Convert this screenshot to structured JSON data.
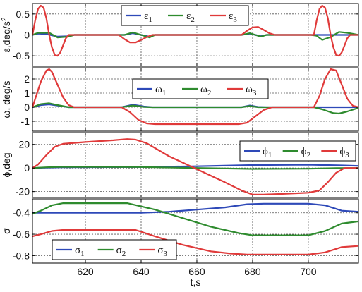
{
  "chart_data": [
    {
      "type": "line",
      "ylabel": "ε,deg/s",
      "ylabel_sup": "2",
      "xlim": [
        601,
        718
      ],
      "ylim": [
        -0.75,
        0.75
      ],
      "yticks": [
        -0.5,
        0,
        0.5
      ],
      "ytick_labels": [
        "-0.5",
        "0",
        "0.5"
      ],
      "grid": true,
      "legend": {
        "position": "top-center",
        "entries": [
          {
            "base": "ε",
            "sub": "1"
          },
          {
            "base": "ε",
            "sub": "2"
          },
          {
            "base": "ε",
            "sub": "3"
          }
        ]
      },
      "series": [
        {
          "color": "#2e49b8",
          "points": [
            [
              601,
              0
            ],
            [
              603,
              0.03
            ],
            [
              606,
              0.02
            ],
            [
              610,
              -0.04
            ],
            [
              614,
              -0.03
            ],
            [
              616,
              0
            ],
            [
              634,
              0
            ],
            [
              637,
              0.04
            ],
            [
              640,
              0
            ],
            [
              643,
              -0.04
            ],
            [
              645,
              0
            ],
            [
              676,
              0
            ],
            [
              679,
              0.03
            ],
            [
              681,
              0
            ],
            [
              683,
              -0.03
            ],
            [
              685,
              0
            ],
            [
              718,
              0
            ]
          ]
        },
        {
          "color": "#2e8b2e",
          "points": [
            [
              601,
              0
            ],
            [
              603,
              0.05
            ],
            [
              607,
              0.05
            ],
            [
              610,
              -0.06
            ],
            [
              614,
              -0.04
            ],
            [
              616,
              0
            ],
            [
              634,
              0
            ],
            [
              637,
              0.06
            ],
            [
              640,
              0
            ],
            [
              643,
              -0.06
            ],
            [
              645,
              0
            ],
            [
              676,
              0
            ],
            [
              679,
              0.04
            ],
            [
              681,
              0
            ],
            [
              683,
              -0.04
            ],
            [
              685,
              0
            ],
            [
              701,
              0
            ],
            [
              703,
              -0.02
            ],
            [
              705,
              -0.12
            ],
            [
              708,
              -0.05
            ],
            [
              711,
              0.07
            ],
            [
              714,
              0.05
            ],
            [
              718,
              0
            ]
          ]
        },
        {
          "color": "#e03a3a",
          "points": [
            [
              601,
              0
            ],
            [
              602,
              0.35
            ],
            [
              603,
              0.62
            ],
            [
              604,
              0.7
            ],
            [
              605,
              0.65
            ],
            [
              606,
              0.4
            ],
            [
              607,
              0
            ],
            [
              608,
              -0.3
            ],
            [
              609,
              -0.48
            ],
            [
              610,
              -0.5
            ],
            [
              611,
              -0.42
            ],
            [
              612,
              -0.25
            ],
            [
              613,
              -0.08
            ],
            [
              614,
              0
            ],
            [
              632,
              0
            ],
            [
              634,
              -0.1
            ],
            [
              636,
              -0.18
            ],
            [
              638,
              -0.18
            ],
            [
              640,
              -0.12
            ],
            [
              642,
              -0.05
            ],
            [
              644,
              0
            ],
            [
              676,
              0
            ],
            [
              678,
              0.1
            ],
            [
              680,
              0.18
            ],
            [
              682,
              0.19
            ],
            [
              684,
              0.12
            ],
            [
              686,
              0.04
            ],
            [
              688,
              0
            ],
            [
              702,
              0
            ],
            [
              703,
              0.35
            ],
            [
              704,
              0.62
            ],
            [
              705,
              0.7
            ],
            [
              706,
              0.65
            ],
            [
              707,
              0.4
            ],
            [
              708,
              0
            ],
            [
              709,
              -0.3
            ],
            [
              710,
              -0.48
            ],
            [
              711,
              -0.5
            ],
            [
              712,
              -0.42
            ],
            [
              713,
              -0.25
            ],
            [
              714,
              -0.08
            ],
            [
              715,
              0
            ],
            [
              718,
              0
            ]
          ]
        }
      ]
    },
    {
      "type": "line",
      "ylabel": "ω, deg/s",
      "xlim": [
        601,
        718
      ],
      "ylim": [
        -1.7,
        2.8
      ],
      "yticks": [
        -1,
        0,
        1,
        2
      ],
      "ytick_labels": [
        "-1",
        "0",
        "1",
        "2"
      ],
      "grid": true,
      "legend": {
        "position": "top-center",
        "entries": [
          {
            "base": "ω",
            "sub": "1"
          },
          {
            "base": "ω",
            "sub": "2"
          },
          {
            "base": "ω",
            "sub": "3"
          }
        ]
      },
      "series": [
        {
          "color": "#2e49b8",
          "points": [
            [
              601,
              0
            ],
            [
              604,
              0.15
            ],
            [
              607,
              0.2
            ],
            [
              610,
              0.12
            ],
            [
              614,
              0
            ],
            [
              633,
              0
            ],
            [
              637,
              0.18
            ],
            [
              641,
              0.05
            ],
            [
              644,
              0
            ],
            [
              676,
              0
            ],
            [
              679,
              0.12
            ],
            [
              682,
              0.02
            ],
            [
              685,
              0
            ],
            [
              718,
              0
            ]
          ]
        },
        {
          "color": "#2e8b2e",
          "points": [
            [
              601,
              0
            ],
            [
              604,
              0.22
            ],
            [
              607,
              0.28
            ],
            [
              610,
              0.15
            ],
            [
              614,
              0
            ],
            [
              633,
              0
            ],
            [
              637,
              0.12
            ],
            [
              641,
              0.02
            ],
            [
              644,
              0
            ],
            [
              676,
              0
            ],
            [
              679,
              0.08
            ],
            [
              682,
              0
            ],
            [
              702,
              0
            ],
            [
              705,
              -0.15
            ],
            [
              709,
              -0.42
            ],
            [
              711,
              -0.45
            ],
            [
              714,
              -0.3
            ],
            [
              718,
              -0.05
            ]
          ]
        },
        {
          "color": "#e03a3a",
          "points": [
            [
              601,
              0
            ],
            [
              602,
              0.6
            ],
            [
              604,
              1.8
            ],
            [
              606,
              2.6
            ],
            [
              607,
              2.7
            ],
            [
              608,
              2.5
            ],
            [
              610,
              1.6
            ],
            [
              612,
              0.7
            ],
            [
              614,
              0.15
            ],
            [
              616,
              0
            ],
            [
              633,
              0
            ],
            [
              636,
              -0.35
            ],
            [
              639,
              -0.9
            ],
            [
              642,
              -1.15
            ],
            [
              645,
              -1.2
            ],
            [
              675,
              -1.2
            ],
            [
              678,
              -1.1
            ],
            [
              681,
              -0.65
            ],
            [
              684,
              -0.2
            ],
            [
              687,
              0
            ],
            [
              702,
              0
            ],
            [
              704,
              0.8
            ],
            [
              706,
              2.0
            ],
            [
              708,
              2.7
            ],
            [
              710,
              2.6
            ],
            [
              712,
              1.6
            ],
            [
              714,
              0.6
            ],
            [
              716,
              0.1
            ],
            [
              718,
              0
            ]
          ]
        }
      ]
    },
    {
      "type": "line",
      "ylabel": "ϕ,deg",
      "xlim": [
        601,
        718
      ],
      "ylim": [
        -25,
        30
      ],
      "yticks": [
        -20,
        0,
        20
      ],
      "ytick_labels": [
        "-20",
        "0",
        "20"
      ],
      "grid": true,
      "legend": {
        "position": "top-right",
        "entries": [
          {
            "base": "ϕ",
            "sub": "1"
          },
          {
            "base": "ϕ",
            "sub": "2"
          },
          {
            "base": "ϕ",
            "sub": "3"
          }
        ]
      },
      "series": [
        {
          "color": "#2e49b8",
          "points": [
            [
              601,
              0
            ],
            [
              606,
              0.3
            ],
            [
              612,
              0.6
            ],
            [
              640,
              0.8
            ],
            [
              660,
              1.5
            ],
            [
              680,
              2.5
            ],
            [
              700,
              2.8
            ],
            [
              712,
              2.2
            ],
            [
              718,
              1.8
            ]
          ]
        },
        {
          "color": "#2e8b2e",
          "points": [
            [
              601,
              0
            ],
            [
              606,
              0.6
            ],
            [
              612,
              1.0
            ],
            [
              640,
              0.8
            ],
            [
              660,
              0
            ],
            [
              680,
              -0.8
            ],
            [
              700,
              -0.6
            ],
            [
              710,
              -0.1
            ],
            [
              718,
              0
            ]
          ]
        },
        {
          "color": "#e03a3a",
          "points": [
            [
              601,
              0
            ],
            [
              603,
              3
            ],
            [
              606,
              11
            ],
            [
              609,
              18
            ],
            [
              612,
              20.5
            ],
            [
              620,
              22
            ],
            [
              630,
              23.5
            ],
            [
              635,
              24.5
            ],
            [
              638,
              24
            ],
            [
              642,
              21
            ],
            [
              650,
              10
            ],
            [
              660,
              -1
            ],
            [
              670,
              -12
            ],
            [
              676,
              -19
            ],
            [
              680,
              -22.5
            ],
            [
              684,
              -22.5
            ],
            [
              690,
              -22
            ],
            [
              700,
              -21
            ],
            [
              704,
              -19
            ],
            [
              707,
              -12
            ],
            [
              710,
              -4
            ],
            [
              713,
              0
            ],
            [
              718,
              0
            ]
          ]
        }
      ]
    },
    {
      "type": "line",
      "ylabel": "σ",
      "xlim": [
        601,
        718
      ],
      "ylim": [
        -0.87,
        -0.27
      ],
      "yticks": [
        -0.8,
        -0.6,
        -0.4
      ],
      "ytick_labels": [
        "-0.8",
        "-0.6",
        "-0.4"
      ],
      "xticks": [
        620,
        640,
        660,
        680,
        700
      ],
      "xtick_labels": [
        "620",
        "640",
        "660",
        "680",
        "700"
      ],
      "xlabel": "t,s",
      "grid": true,
      "legend": {
        "position": "bottom-left",
        "entries": [
          {
            "base": "σ",
            "sub": "1"
          },
          {
            "base": "σ",
            "sub": "2"
          },
          {
            "base": "σ",
            "sub": "3"
          }
        ]
      },
      "series": [
        {
          "color": "#2e49b8",
          "points": [
            [
              601,
              -0.4
            ],
            [
              640,
              -0.4
            ],
            [
              650,
              -0.39
            ],
            [
              660,
              -0.37
            ],
            [
              670,
              -0.35
            ],
            [
              678,
              -0.32
            ],
            [
              684,
              -0.315
            ],
            [
              700,
              -0.315
            ],
            [
              706,
              -0.33
            ],
            [
              712,
              -0.38
            ],
            [
              718,
              -0.39
            ]
          ]
        },
        {
          "color": "#2e8b2e",
          "points": [
            [
              601,
              -0.41
            ],
            [
              604,
              -0.38
            ],
            [
              608,
              -0.33
            ],
            [
              612,
              -0.31
            ],
            [
              635,
              -0.31
            ],
            [
              645,
              -0.37
            ],
            [
              655,
              -0.45
            ],
            [
              665,
              -0.53
            ],
            [
              675,
              -0.59
            ],
            [
              680,
              -0.61
            ],
            [
              700,
              -0.61
            ],
            [
              706,
              -0.57
            ],
            [
              712,
              -0.5
            ],
            [
              718,
              -0.48
            ]
          ]
        },
        {
          "color": "#e03a3a",
          "points": [
            [
              601,
              -0.62
            ],
            [
              604,
              -0.6
            ],
            [
              608,
              -0.57
            ],
            [
              612,
              -0.56
            ],
            [
              638,
              -0.56
            ],
            [
              645,
              -0.62
            ],
            [
              655,
              -0.7
            ],
            [
              665,
              -0.76
            ],
            [
              672,
              -0.78
            ],
            [
              678,
              -0.79
            ],
            [
              700,
              -0.79
            ],
            [
              706,
              -0.77
            ],
            [
              712,
              -0.72
            ],
            [
              718,
              -0.71
            ]
          ]
        }
      ]
    }
  ]
}
